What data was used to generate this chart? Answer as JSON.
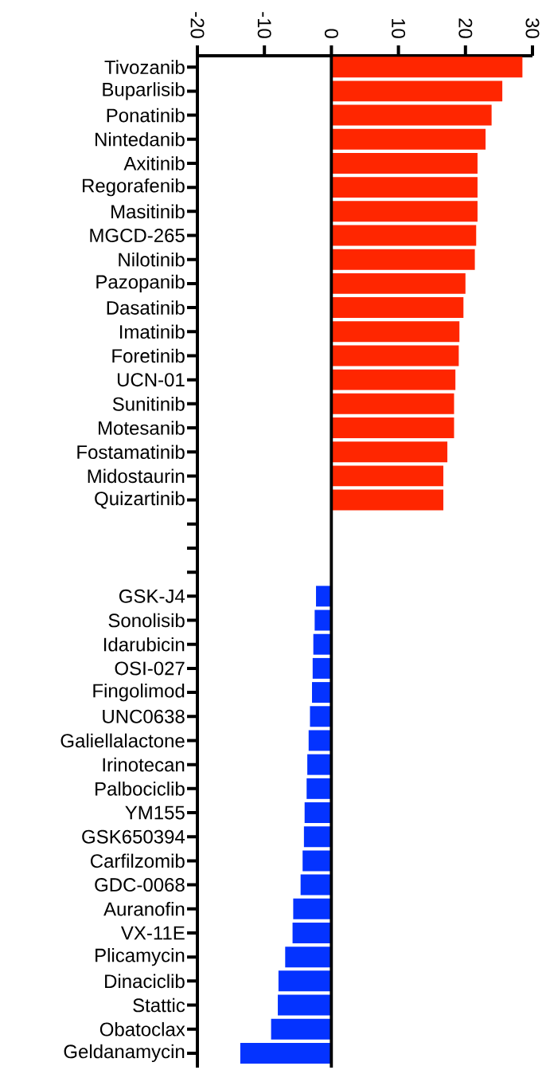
{
  "chart_data": {
    "type": "bar",
    "orientation": "horizontal",
    "categories": [
      "Tivozanib",
      "Buparlisib",
      "Ponatinib",
      "Nintedanib",
      "Axitinib",
      "Regorafenib",
      "Masitinib",
      "MGCD-265",
      "Nilotinib",
      "Pazopanib",
      "Dasatinib",
      "Imatinib",
      "Foretinib",
      "UCN-01",
      "Sunitinib",
      "Motesanib",
      "Fostamatinib",
      "Midostaurin",
      "Quizartinib",
      null,
      null,
      null,
      "GSK-J4",
      "Sonolisib",
      "Idarubicin",
      "OSI-027",
      "Fingolimod",
      "UNC0638",
      "Galiellalactone",
      "Irinotecan",
      "Palbociclib",
      "YM155",
      "GSK650394",
      "Carfilzomib",
      "GDC-0068",
      "Auranofin",
      "VX-11E",
      "Plicamycin",
      "Dinaciclib",
      "Stattic",
      "Obatoclax",
      "Geldanamycin"
    ],
    "series": [
      {
        "color": "#ff2600",
        "values": [
          28.5,
          25.5,
          23.9,
          23.0,
          21.8,
          21.8,
          21.8,
          21.6,
          21.4,
          20.0,
          19.7,
          19.1,
          19.0,
          18.5,
          18.3,
          18.3,
          17.3,
          16.7,
          16.7,
          null,
          null,
          null,
          null,
          null,
          null,
          null,
          null,
          null,
          null,
          null,
          null,
          null,
          null,
          null,
          null,
          null,
          null,
          null,
          null,
          null,
          null,
          null
        ]
      },
      {
        "color": "#0433ff",
        "values": [
          null,
          null,
          null,
          null,
          null,
          null,
          null,
          null,
          null,
          null,
          null,
          null,
          null,
          null,
          null,
          null,
          null,
          null,
          null,
          null,
          null,
          null,
          -2.3,
          -2.5,
          -2.7,
          -2.8,
          -2.9,
          -3.2,
          -3.4,
          -3.6,
          -3.7,
          -4.0,
          -4.1,
          -4.3,
          -4.6,
          -5.7,
          -5.8,
          -6.9,
          -7.9,
          -8.0,
          -9.0,
          -13.6
        ]
      }
    ],
    "xlim": [
      -20,
      30
    ],
    "xticks": [
      -20,
      -10,
      0,
      10,
      20,
      30
    ],
    "ref_lines": [
      {
        "axis": "x",
        "value": 0,
        "color": "#000000"
      }
    ]
  }
}
